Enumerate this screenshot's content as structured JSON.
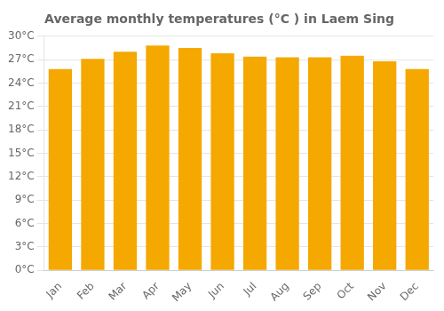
{
  "chart_data": {
    "type": "bar",
    "title": "Average monthly temperatures (°C ) in Laem Sing",
    "categories": [
      "Jan",
      "Feb",
      "Mar",
      "Apr",
      "May",
      "Jun",
      "Jul",
      "Aug",
      "Sep",
      "Oct",
      "Nov",
      "Dec"
    ],
    "values": [
      25.8,
      27.1,
      28.0,
      28.8,
      28.5,
      27.8,
      27.4,
      27.3,
      27.3,
      27.5,
      26.8,
      25.8
    ],
    "color": "#F5A800",
    "ylim": [
      0,
      30
    ],
    "yticks": [
      {
        "value": 0,
        "label": "0°C"
      },
      {
        "value": 3,
        "label": "3°C"
      },
      {
        "value": 6,
        "label": "6°C"
      },
      {
        "value": 9,
        "label": "9°C"
      },
      {
        "value": 12,
        "label": "12°C"
      },
      {
        "value": 15,
        "label": "15°C"
      },
      {
        "value": 18,
        "label": "18°C"
      },
      {
        "value": 21,
        "label": "21°C"
      },
      {
        "value": 24,
        "label": "24°C"
      },
      {
        "value": 27,
        "label": "27°C"
      },
      {
        "value": 30,
        "label": "30°C"
      }
    ],
    "grid": true
  }
}
